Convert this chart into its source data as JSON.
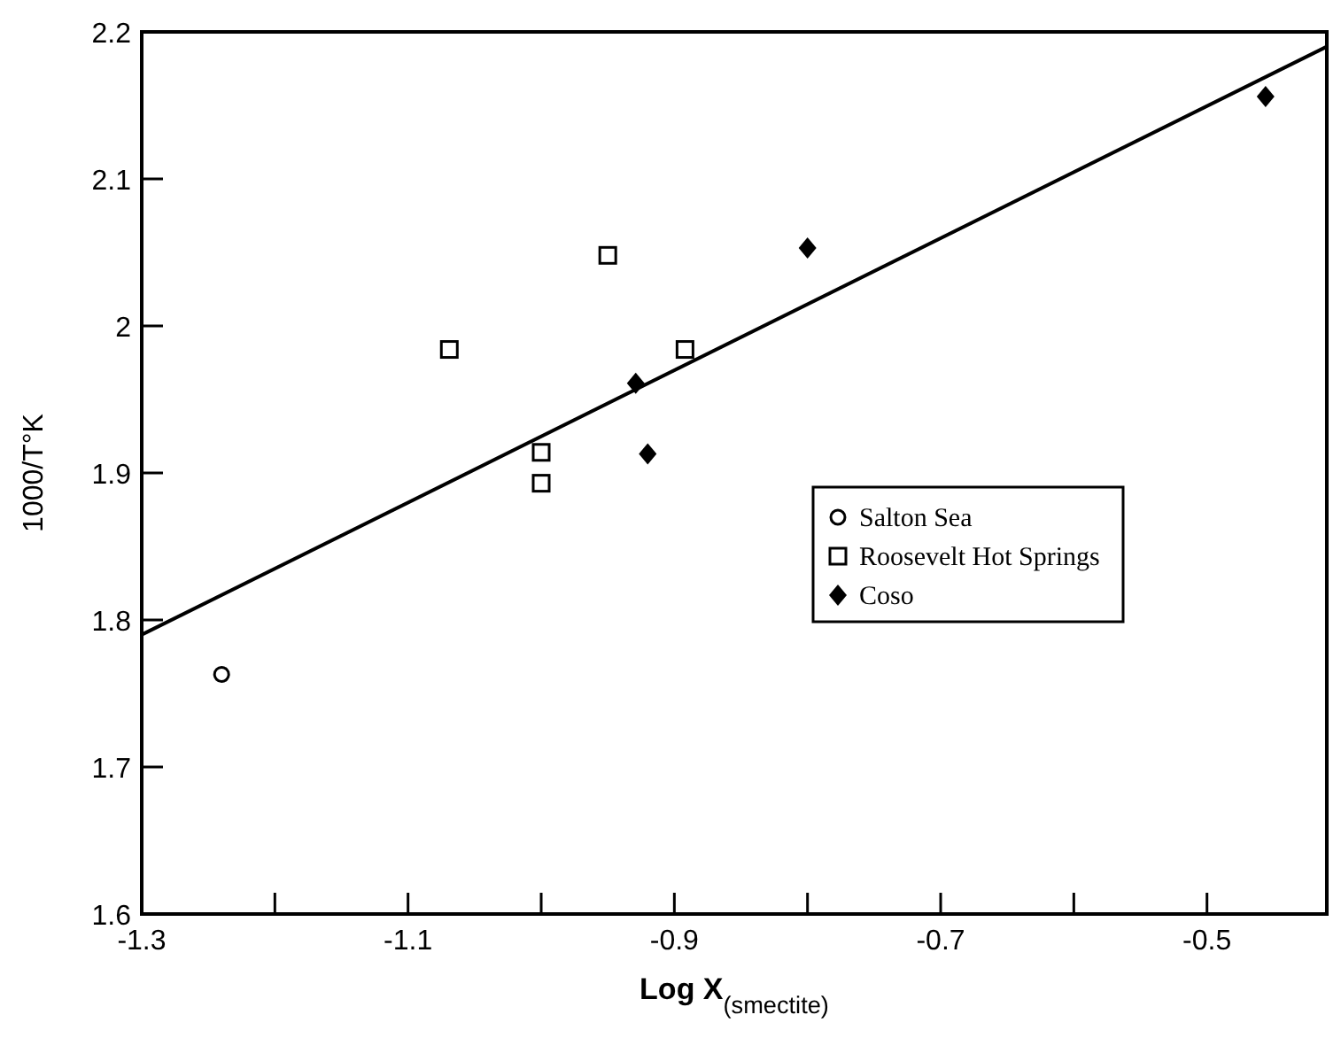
{
  "chart_data": {
    "type": "scatter",
    "xlabel": "Log X$_{(smectite)}$",
    "ylabel": "1000/T°K",
    "xlim": [
      -1.3,
      -0.41
    ],
    "ylim": [
      1.6,
      2.2
    ],
    "xticks": [
      -1.3,
      {
        "value": -1.2,
        "label": null
      },
      -1.1,
      {
        "value": -1.0,
        "label": null
      },
      -0.9,
      {
        "value": -0.8,
        "label": null
      },
      -0.7,
      {
        "value": -0.6,
        "label": null
      },
      -0.5
    ],
    "yticks": [
      1.6,
      1.7,
      1.8,
      1.9,
      {
        "value": 2.0,
        "label": "2"
      },
      2.1,
      2.2
    ],
    "grid": false,
    "legend": "right",
    "series": [
      {
        "name": "Salton Sea",
        "color": "#000000",
        "marker": "circle",
        "x": [
          -1.24
        ],
        "values": [
          1.763
        ]
      },
      {
        "name": "Roosevelt Hot Springs",
        "color": "#000000",
        "marker": "square",
        "x": [
          -1.069,
          -1.0,
          -1.0,
          -0.95,
          -0.892
        ],
        "values": [
          1.984,
          1.914,
          1.893,
          2.048,
          1.984
        ]
      },
      {
        "name": "Coso",
        "color": "#000000",
        "marker": "diamond",
        "x": [
          -0.929,
          -0.92,
          -0.8,
          -0.456
        ],
        "values": [
          1.961,
          1.913,
          2.053,
          2.156
        ]
      },
      {
        "type": "line",
        "color": "#000000",
        "marker": "none",
        "line_style": "solid",
        "x": [
          -1.3,
          -0.41
        ],
        "values": [
          1.79,
          2.19
        ]
      }
    ]
  }
}
